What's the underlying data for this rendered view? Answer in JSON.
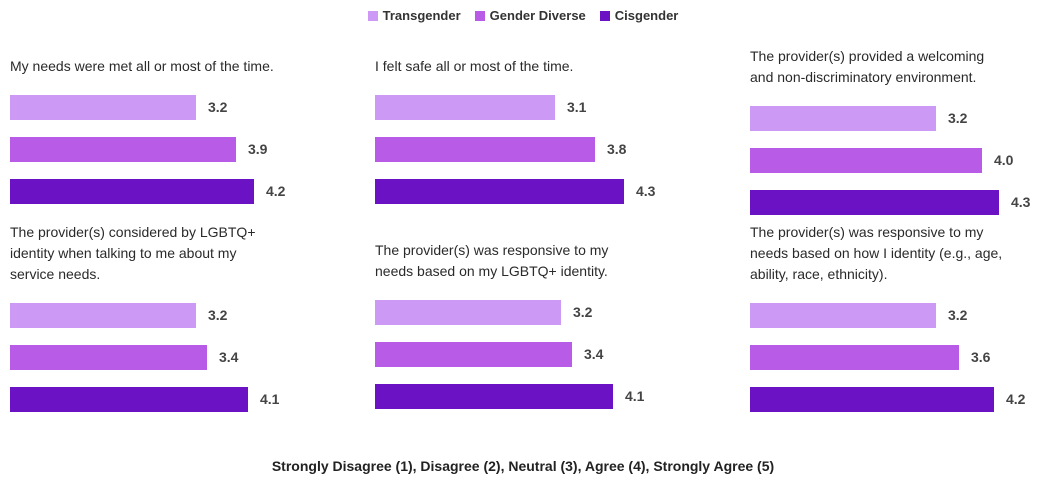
{
  "legend": [
    {
      "label": "Transgender",
      "color": "#cc99f5"
    },
    {
      "label": "Gender Diverse",
      "color": "#b85ce8"
    },
    {
      "label": "Cisgender",
      "color": "#6a12c4"
    }
  ],
  "chart_data": {
    "type": "bar",
    "orientation": "horizontal",
    "legend_position": "top-center",
    "value_range": [
      1,
      5
    ],
    "series_names": [
      "Transgender",
      "Gender Diverse",
      "Cisgender"
    ],
    "panels": [
      {
        "title": "My needs were met all or most of the time.",
        "values": [
          3.2,
          3.9,
          4.2
        ],
        "labels": [
          "3.2",
          "3.9",
          "4.2"
        ]
      },
      {
        "title": "I felt safe all or most of the time.",
        "values": [
          3.1,
          3.8,
          4.3
        ],
        "labels": [
          "3.1",
          "3.8",
          "4.3"
        ]
      },
      {
        "title": "The provider(s) provided a welcoming\nand non-discriminatory environment.",
        "values": [
          3.2,
          4.0,
          4.3
        ],
        "labels": [
          "3.2",
          "4.0",
          "4.3"
        ]
      },
      {
        "title": "The provider(s) considered by LGBTQ+\nidentity when talking to me about my\nservice needs.",
        "values": [
          3.2,
          3.4,
          4.1
        ],
        "labels": [
          "3.2",
          "3.4",
          "4.1"
        ]
      },
      {
        "title": "The provider(s) was responsive to my\nneeds based on my LGBTQ+ identity.",
        "values": [
          3.2,
          3.4,
          4.1
        ],
        "labels": [
          "3.2",
          "3.4",
          "4.1"
        ]
      },
      {
        "title": "The provider(s) was responsive to my\nneeds based on how I identity (e.g., age,\nability, race, ethnicity).",
        "values": [
          3.2,
          3.6,
          4.2
        ],
        "labels": [
          "3.2",
          "3.6",
          "4.2"
        ]
      }
    ]
  },
  "footer": "Strongly Disagree (1), Disagree (2), Neutral (3), Agree (4), Strongly Agree (5)"
}
